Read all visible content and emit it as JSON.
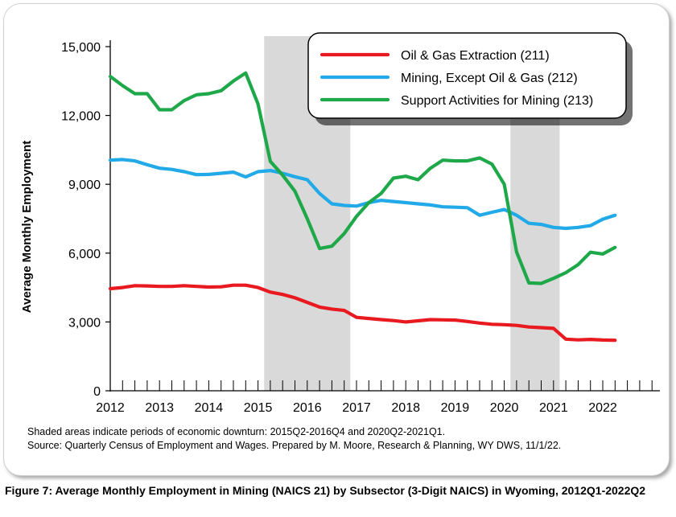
{
  "chart_data": {
    "type": "line",
    "ylabel": "Average Monthly Employment",
    "xlabel": "",
    "ylim": [
      0,
      15000
    ],
    "yticks": [
      0,
      3000,
      6000,
      9000,
      12000,
      15000
    ],
    "ytick_labels": [
      "0",
      "3,000",
      "6,000",
      "9,000",
      "12,000",
      "15,000"
    ],
    "xlim": [
      2012,
      2023
    ],
    "xticks": [
      2012,
      2013,
      2014,
      2015,
      2016,
      2017,
      2018,
      2019,
      2020,
      2021,
      2022
    ],
    "xtick_labels": [
      "2012",
      "2013",
      "2014",
      "2015",
      "2016",
      "2017",
      "2018",
      "2019",
      "2020",
      "2021",
      "2022"
    ],
    "grid": false,
    "legend_position": "top-right",
    "shaded_periods": [
      {
        "start": "2015Q2",
        "end": "2016Q4"
      },
      {
        "start": "2020Q2",
        "end": "2021Q1"
      }
    ],
    "quarters": [
      "2012Q1",
      "2012Q2",
      "2012Q3",
      "2012Q4",
      "2013Q1",
      "2013Q2",
      "2013Q3",
      "2013Q4",
      "2014Q1",
      "2014Q2",
      "2014Q3",
      "2014Q4",
      "2015Q1",
      "2015Q2",
      "2015Q3",
      "2015Q4",
      "2016Q1",
      "2016Q2",
      "2016Q3",
      "2016Q4",
      "2017Q1",
      "2017Q2",
      "2017Q3",
      "2017Q4",
      "2018Q1",
      "2018Q2",
      "2018Q3",
      "2018Q4",
      "2019Q1",
      "2019Q2",
      "2019Q3",
      "2019Q4",
      "2020Q1",
      "2020Q2",
      "2020Q3",
      "2020Q4",
      "2021Q1",
      "2021Q2",
      "2021Q3",
      "2021Q4",
      "2022Q1",
      "2022Q2"
    ],
    "series": [
      {
        "name": "Oil & Gas Extraction (211)",
        "color": "#e8191f",
        "values": [
          4450,
          4500,
          4580,
          4570,
          4550,
          4550,
          4580,
          4550,
          4520,
          4530,
          4600,
          4600,
          4500,
          4300,
          4200,
          4050,
          3850,
          3650,
          3560,
          3500,
          3200,
          3150,
          3100,
          3060,
          3000,
          3050,
          3100,
          3090,
          3080,
          3020,
          2950,
          2900,
          2880,
          2850,
          2780,
          2750,
          2720,
          2250,
          2220,
          2240,
          2210,
          2200
        ]
      },
      {
        "name": "Mining, Except Oil & Gas (212)",
        "color": "#22aae8",
        "values": [
          10050,
          10080,
          10020,
          9850,
          9700,
          9650,
          9550,
          9420,
          9430,
          9480,
          9530,
          9320,
          9550,
          9600,
          9480,
          9330,
          9200,
          8600,
          8150,
          8080,
          8050,
          8200,
          8300,
          8250,
          8200,
          8150,
          8100,
          8020,
          8000,
          7980,
          7650,
          7780,
          7900,
          7650,
          7300,
          7250,
          7120,
          7080,
          7120,
          7200,
          7480,
          7650
        ]
      },
      {
        "name": "Support Activities for Mining (213)",
        "color": "#1fa84a",
        "values": [
          13700,
          13300,
          12950,
          12950,
          12250,
          12250,
          12650,
          12900,
          12950,
          13080,
          13500,
          13850,
          12500,
          10000,
          9400,
          8700,
          7500,
          6200,
          6300,
          6850,
          7600,
          8200,
          8600,
          9270,
          9350,
          9200,
          9700,
          10050,
          10020,
          10020,
          10150,
          9880,
          9000,
          6050,
          4700,
          4680,
          4900,
          5150,
          5500,
          6040,
          5960,
          6250
        ]
      }
    ]
  },
  "notes": {
    "shaded": "Shaded areas indicate periods of economic downturn: 2015Q2-2016Q4 and 2020Q2-2021Q1.",
    "source": "Source: Quarterly Census of Employment and Wages. Prepared by M. Moore, Research & Planning, WY DWS, 11/1/22."
  },
  "caption": "Figure 7: Average Monthly Employment in Mining (NAICS 21) by Subsector (3-Digit NAICS) in Wyoming, 2012Q1-2022Q2"
}
